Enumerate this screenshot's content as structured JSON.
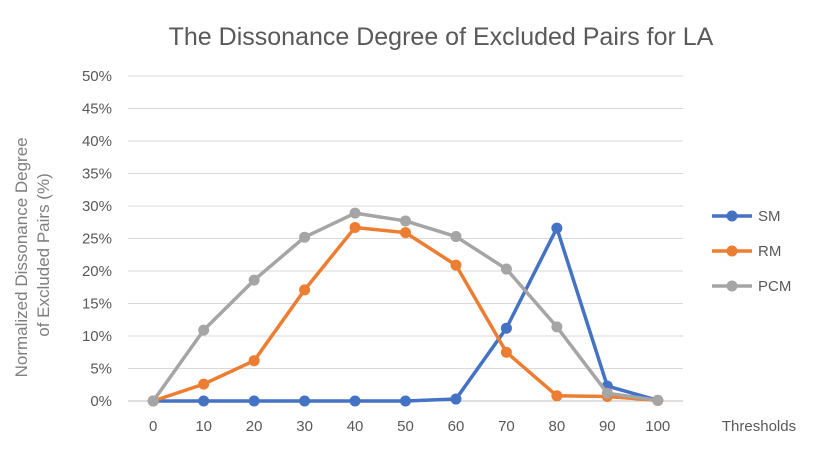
{
  "chart_data": {
    "type": "line",
    "title": "The Dissonance Degree of Excluded Pairs for LA",
    "xlabel": "Thresholds",
    "ylabel_lines": [
      "Normalized Dissonance Degree",
      "of Excluded Pairs (%)"
    ],
    "x": [
      0,
      10,
      20,
      30,
      40,
      50,
      60,
      70,
      80,
      90,
      100
    ],
    "ylim": [
      0,
      50
    ],
    "ytick_labels": [
      "0%",
      "5%",
      "10%",
      "15%",
      "20%",
      "25%",
      "30%",
      "35%",
      "40%",
      "45%",
      "50%"
    ],
    "grid": true,
    "legend_position": "right",
    "series": [
      {
        "name": "SM",
        "color": "#4472C4",
        "values": [
          0,
          0,
          0,
          0,
          0,
          0,
          0.3,
          11.2,
          26.6,
          2.3,
          0.1
        ]
      },
      {
        "name": "RM",
        "color": "#ED7D31",
        "values": [
          0,
          2.6,
          6.2,
          17.1,
          26.7,
          25.9,
          20.9,
          7.5,
          0.8,
          0.7,
          0.1
        ]
      },
      {
        "name": "PCM",
        "color": "#A5A5A5",
        "values": [
          0,
          10.9,
          18.6,
          25.2,
          28.9,
          27.7,
          25.3,
          20.3,
          11.4,
          1.2,
          0.1
        ]
      }
    ]
  }
}
